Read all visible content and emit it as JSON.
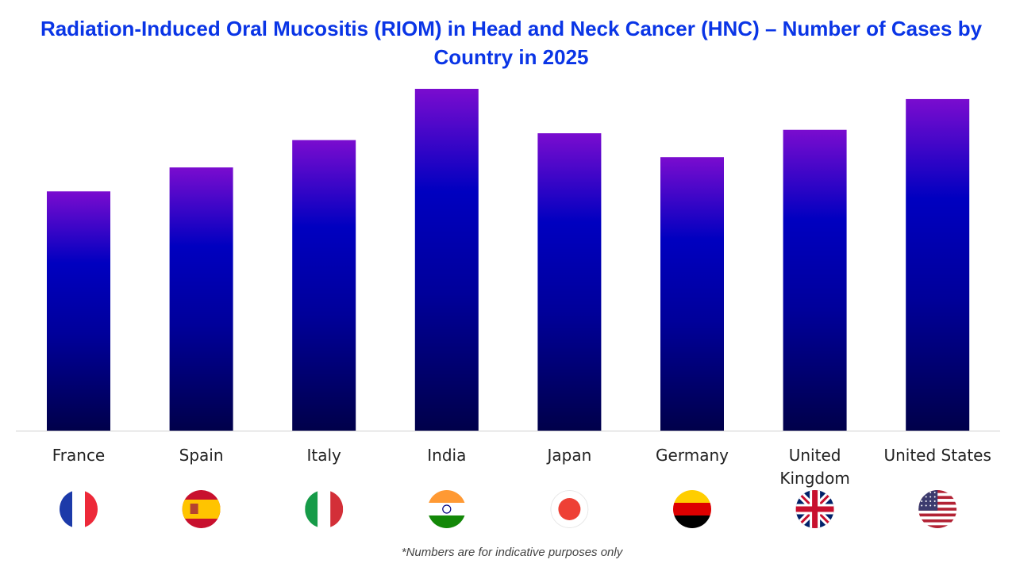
{
  "chart_data": {
    "type": "bar",
    "title": "Radiation-Induced Oral Mucositis (RIOM) in Head and Neck Cancer (HNC) – Number of Cases by Country in 2025",
    "categories": [
      "France",
      "Spain",
      "Italy",
      "India",
      "Japan",
      "Germany",
      "United Kingdom",
      "United States"
    ],
    "values": [
      70,
      77,
      85,
      100,
      87,
      80,
      88,
      97
    ],
    "xlabel": "",
    "ylabel": "",
    "grid": false,
    "legend": "none",
    "colors": {
      "bar_top": "#7a0ccf",
      "bar_mid": "#0000c0",
      "bar_bottom": "#00004a",
      "title": "#0a35e6"
    },
    "flags": [
      "france-flag",
      "spain-flag",
      "italy-flag",
      "india-flag",
      "japan-flag",
      "germany-flag",
      "uk-flag",
      "us-flag"
    ]
  },
  "footnote": "*Numbers are for indicative purposes only"
}
